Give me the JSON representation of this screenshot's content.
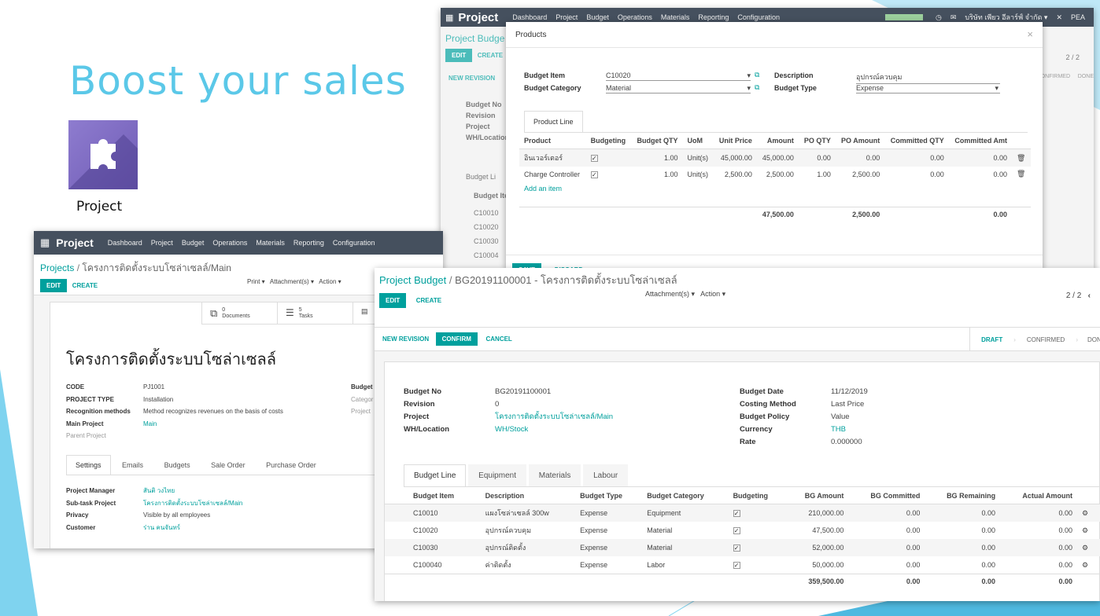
{
  "slide": {
    "title": "Boost your sales",
    "tile_label": "Project"
  },
  "colors": {
    "accent": "#5bc8e8",
    "nav": "#45505e",
    "primary": "#00a09d"
  },
  "project": {
    "nav": {
      "brand": "Project",
      "menu": [
        "Dashboard",
        "Project",
        "Budget",
        "Operations",
        "Materials",
        "Reporting",
        "Configuration"
      ]
    },
    "breadcrumb": {
      "root": "Projects",
      "sep": "/",
      "current": "โครงการติดตั้งระบบโซล่าเซลล์/Main"
    },
    "buttons": {
      "edit": "EDIT",
      "create": "CREATE",
      "print": "Print ▾",
      "attachments": "Attachment(s) ▾",
      "action": "Action ▾"
    },
    "stats": {
      "docs_count": "0",
      "docs_label": "Documents",
      "tasks_count": "5",
      "tasks_label": "Tasks"
    },
    "name": "โครงการติดตั้งระบบโซล่าเซลล์",
    "fields": [
      {
        "label": "CODE",
        "value": "PJ1001"
      },
      {
        "label": "PROJECT TYPE",
        "value": "Installation"
      },
      {
        "label": "Recognition methods",
        "value": "Method recognizes revenues on the basis of costs"
      },
      {
        "label": "Main Project",
        "value": "Main"
      },
      {
        "label": "Parent Project",
        "value": ""
      }
    ],
    "side_labels": [
      "Budget",
      "Categor",
      "Project"
    ],
    "tabs": [
      "Settings",
      "Emails",
      "Budgets",
      "Sale Order",
      "Purchase Order"
    ],
    "settings": [
      {
        "label": "Project Manager",
        "value": "สันติ วงไทย"
      },
      {
        "label": "Sub-task Project",
        "value": "โครงการติดตั้งระบบโซล่าเซลล์/Main"
      },
      {
        "label": "Privacy",
        "value": "Visible by all employees"
      },
      {
        "label": "Customer",
        "value": "ร่าน คนจันทร์"
      }
    ]
  },
  "bg": {
    "nav": {
      "brand": "Project",
      "menu": [
        "Dashboard",
        "Project",
        "Budget",
        "Operations",
        "Materials",
        "Reporting",
        "Configuration"
      ],
      "badge": "5",
      "company": "บริษัท เพียว อีลาร์ฟ์ จำกัด ▾",
      "user": "PEA"
    },
    "breadcrumb": "Project Budge",
    "buttons": {
      "edit": "EDIT",
      "create": "CREATE",
      "new_revision": "NEW REVISION"
    },
    "pager": "2 / 2",
    "stages": [
      "CONFIRMED",
      "DONE"
    ],
    "labels": [
      "Budget No",
      "Revision",
      "Project",
      "WH/Location"
    ],
    "tab": "Budget Li",
    "col": "Budget Ite",
    "rows": [
      "C10010",
      "C10020",
      "C10030",
      "C10004"
    ]
  },
  "modal": {
    "title": "Products",
    "close": "×",
    "budget_item_label": "Budget Item",
    "budget_item": "C10020",
    "budget_category_label": "Budget Category",
    "budget_category": "Material",
    "description_label": "Description",
    "description": "อุปกรณ์ควบคุม",
    "budget_type_label": "Budget Type",
    "budget_type": "Expense",
    "tab": "Product Line",
    "columns": [
      "Product",
      "Budgeting",
      "Budget QTY",
      "UoM",
      "Unit Price",
      "Amount",
      "PO QTY",
      "PO Amount",
      "Committed QTY",
      "Committed Amt"
    ],
    "rows": [
      {
        "product": "อินเวอร์เตอร์",
        "qty": "1.00",
        "uom": "Unit(s)",
        "price": "45,000.00",
        "amount": "45,000.00",
        "po_qty": "0.00",
        "po_amount": "0.00",
        "c_qty": "0.00",
        "c_amt": "0.00"
      },
      {
        "product": "Charge Controller",
        "qty": "1.00",
        "uom": "Unit(s)",
        "price": "2,500.00",
        "amount": "2,500.00",
        "po_qty": "1.00",
        "po_amount": "2,500.00",
        "c_qty": "0.00",
        "c_amt": "0.00"
      }
    ],
    "add_item": "Add an item",
    "totals": {
      "amount": "47,500.00",
      "po_amount": "2,500.00",
      "c_amt": "0.00"
    },
    "footer": {
      "save": "SAVE",
      "discard": "DISCARD"
    }
  },
  "budget": {
    "breadcrumb": {
      "root": "Project Budget",
      "sep": "/",
      "current": "BG20191100001 - โครงการติดตั้งระบบโซล่าเซลล์"
    },
    "buttons": {
      "edit": "EDIT",
      "create": "CREATE",
      "attachments": "Attachment(s) ▾",
      "action": "Action ▾",
      "new_revision": "NEW REVISION",
      "confirm": "CONFIRM",
      "cancel": "CANCEL"
    },
    "pager": "2 / 2",
    "stages": [
      "DRAFT",
      "CONFIRMED",
      "DONE"
    ],
    "left": [
      {
        "label": "Budget No",
        "value": "BG20191100001"
      },
      {
        "label": "Revision",
        "value": "0"
      },
      {
        "label": "Project",
        "value": "โครงการติดตั้งระบบโซล่าเซลล์/Main"
      },
      {
        "label": "WH/Location",
        "value": "WH/Stock"
      }
    ],
    "right": [
      {
        "label": "Budget Date",
        "value": "11/12/2019"
      },
      {
        "label": "Costing Method",
        "value": "Last Price"
      },
      {
        "label": "Budget Policy",
        "value": "Value"
      },
      {
        "label": "Currency",
        "value": "THB"
      },
      {
        "label": "Rate",
        "value": "0.000000"
      }
    ],
    "tabs": [
      "Budget Line",
      "Equipment",
      "Materials",
      "Labour"
    ],
    "columns": [
      "Budget Item",
      "Description",
      "Budget Type",
      "Budget Category",
      "Budgeting",
      "BG Amount",
      "BG Committed",
      "BG Remaining",
      "Actual Amount"
    ],
    "rows": [
      {
        "item": "C10010",
        "desc": "แผงโซล่าเซลล์ 300w",
        "type": "Expense",
        "cat": "Equipment",
        "amount": "210,000.00",
        "committed": "0.00",
        "remaining": "0.00",
        "actual": "0.00"
      },
      {
        "item": "C10020",
        "desc": "อุปกรณ์ควบคุม",
        "type": "Expense",
        "cat": "Material",
        "amount": "47,500.00",
        "committed": "0.00",
        "remaining": "0.00",
        "actual": "0.00"
      },
      {
        "item": "C10030",
        "desc": "อุปกรณ์ติดตั้ง",
        "type": "Expense",
        "cat": "Material",
        "amount": "52,000.00",
        "committed": "0.00",
        "remaining": "0.00",
        "actual": "0.00"
      },
      {
        "item": "C100040",
        "desc": "ค่าติดตั้ง",
        "type": "Expense",
        "cat": "Labor",
        "amount": "50,000.00",
        "committed": "0.00",
        "remaining": "0.00",
        "actual": "0.00"
      }
    ],
    "totals": {
      "amount": "359,500.00",
      "committed": "0.00",
      "remaining": "0.00",
      "actual": "0.00"
    }
  }
}
